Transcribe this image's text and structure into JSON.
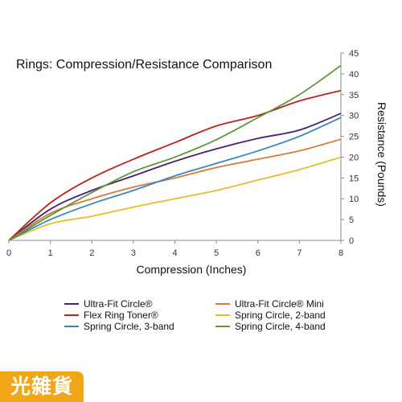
{
  "chart_data": {
    "type": "line",
    "title": "Rings: Compression/Resistance Comparison",
    "xlabel": "Compression (Inches)",
    "ylabel": "Resistance (Pounds)",
    "xlim": [
      0,
      8
    ],
    "ylim": [
      0,
      45
    ],
    "x_ticks": [
      "0",
      "1",
      "2",
      "3",
      "4",
      "5",
      "6",
      "7",
      "8"
    ],
    "y_ticks": [
      "0",
      "5",
      "10",
      "15",
      "20",
      "25",
      "30",
      "35",
      "40",
      "45"
    ],
    "y_axis_side": "right",
    "grid": false,
    "legend_position": "bottom",
    "x": [
      0,
      1,
      2,
      3,
      4,
      5,
      6,
      7,
      8
    ],
    "series": [
      {
        "name": "Ultra-Fit Circle®",
        "color": "#4b1f7a",
        "values": [
          0,
          7.5,
          12,
          15.5,
          19,
          22,
          24.5,
          26.5,
          30.5
        ]
      },
      {
        "name": "Ultra-Fit Circle® Mini",
        "color": "#d87a33",
        "values": [
          0,
          6.5,
          10,
          12.8,
          15,
          17.5,
          19.5,
          21.5,
          24.3
        ]
      },
      {
        "name": "Flex Ring Toner®",
        "color": "#c0221d",
        "values": [
          0,
          9,
          15,
          19.5,
          23.5,
          27.5,
          30,
          33.5,
          36
        ]
      },
      {
        "name": "Spring Circle, 2-band",
        "color": "#e6be2a",
        "values": [
          0,
          4,
          5.8,
          8,
          10,
          12,
          14.5,
          17,
          20
        ]
      },
      {
        "name": "Spring Circle, 3-band",
        "color": "#3b85c0",
        "values": [
          0,
          5,
          8.8,
          12,
          15.5,
          18.5,
          21.5,
          25,
          29.5
        ]
      },
      {
        "name": "Spring Circle, 4-band",
        "color": "#5c9a35",
        "values": [
          0,
          6,
          11.5,
          16.5,
          20,
          24.2,
          29.5,
          35,
          42
        ]
      }
    ]
  },
  "watermark": "光雜貨"
}
